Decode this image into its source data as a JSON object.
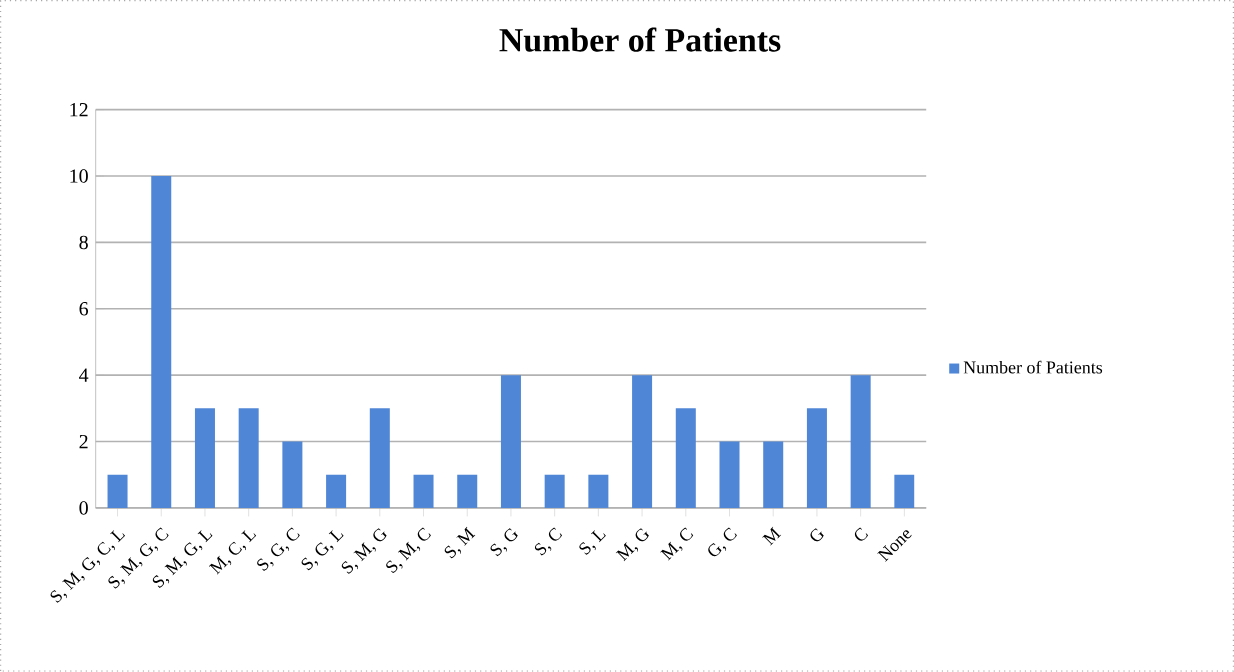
{
  "chart_data": {
    "type": "bar",
    "title": "Number of Patients",
    "categories": [
      "S, M, G, C, L",
      "S, M, G, C",
      "S, M, G, L",
      "M, C, L",
      "S, G, C",
      "S, G, L",
      "S, M, G",
      "S, M, C",
      "S, M",
      "S, G",
      "S, C",
      "S, L",
      "M, G",
      "M, C",
      "G, C",
      "M",
      "G",
      "C",
      "None"
    ],
    "series": [
      {
        "name": "Number of Patients",
        "color": "#4f86d6",
        "values": [
          1,
          10,
          3,
          3,
          2,
          1,
          3,
          1,
          1,
          4,
          1,
          1,
          4,
          3,
          2,
          2,
          3,
          4,
          1
        ]
      }
    ],
    "ylim": [
      0,
      12
    ],
    "yticks": [
      0,
      2,
      4,
      6,
      8,
      10,
      12
    ],
    "grid": "y",
    "legend": "right"
  }
}
